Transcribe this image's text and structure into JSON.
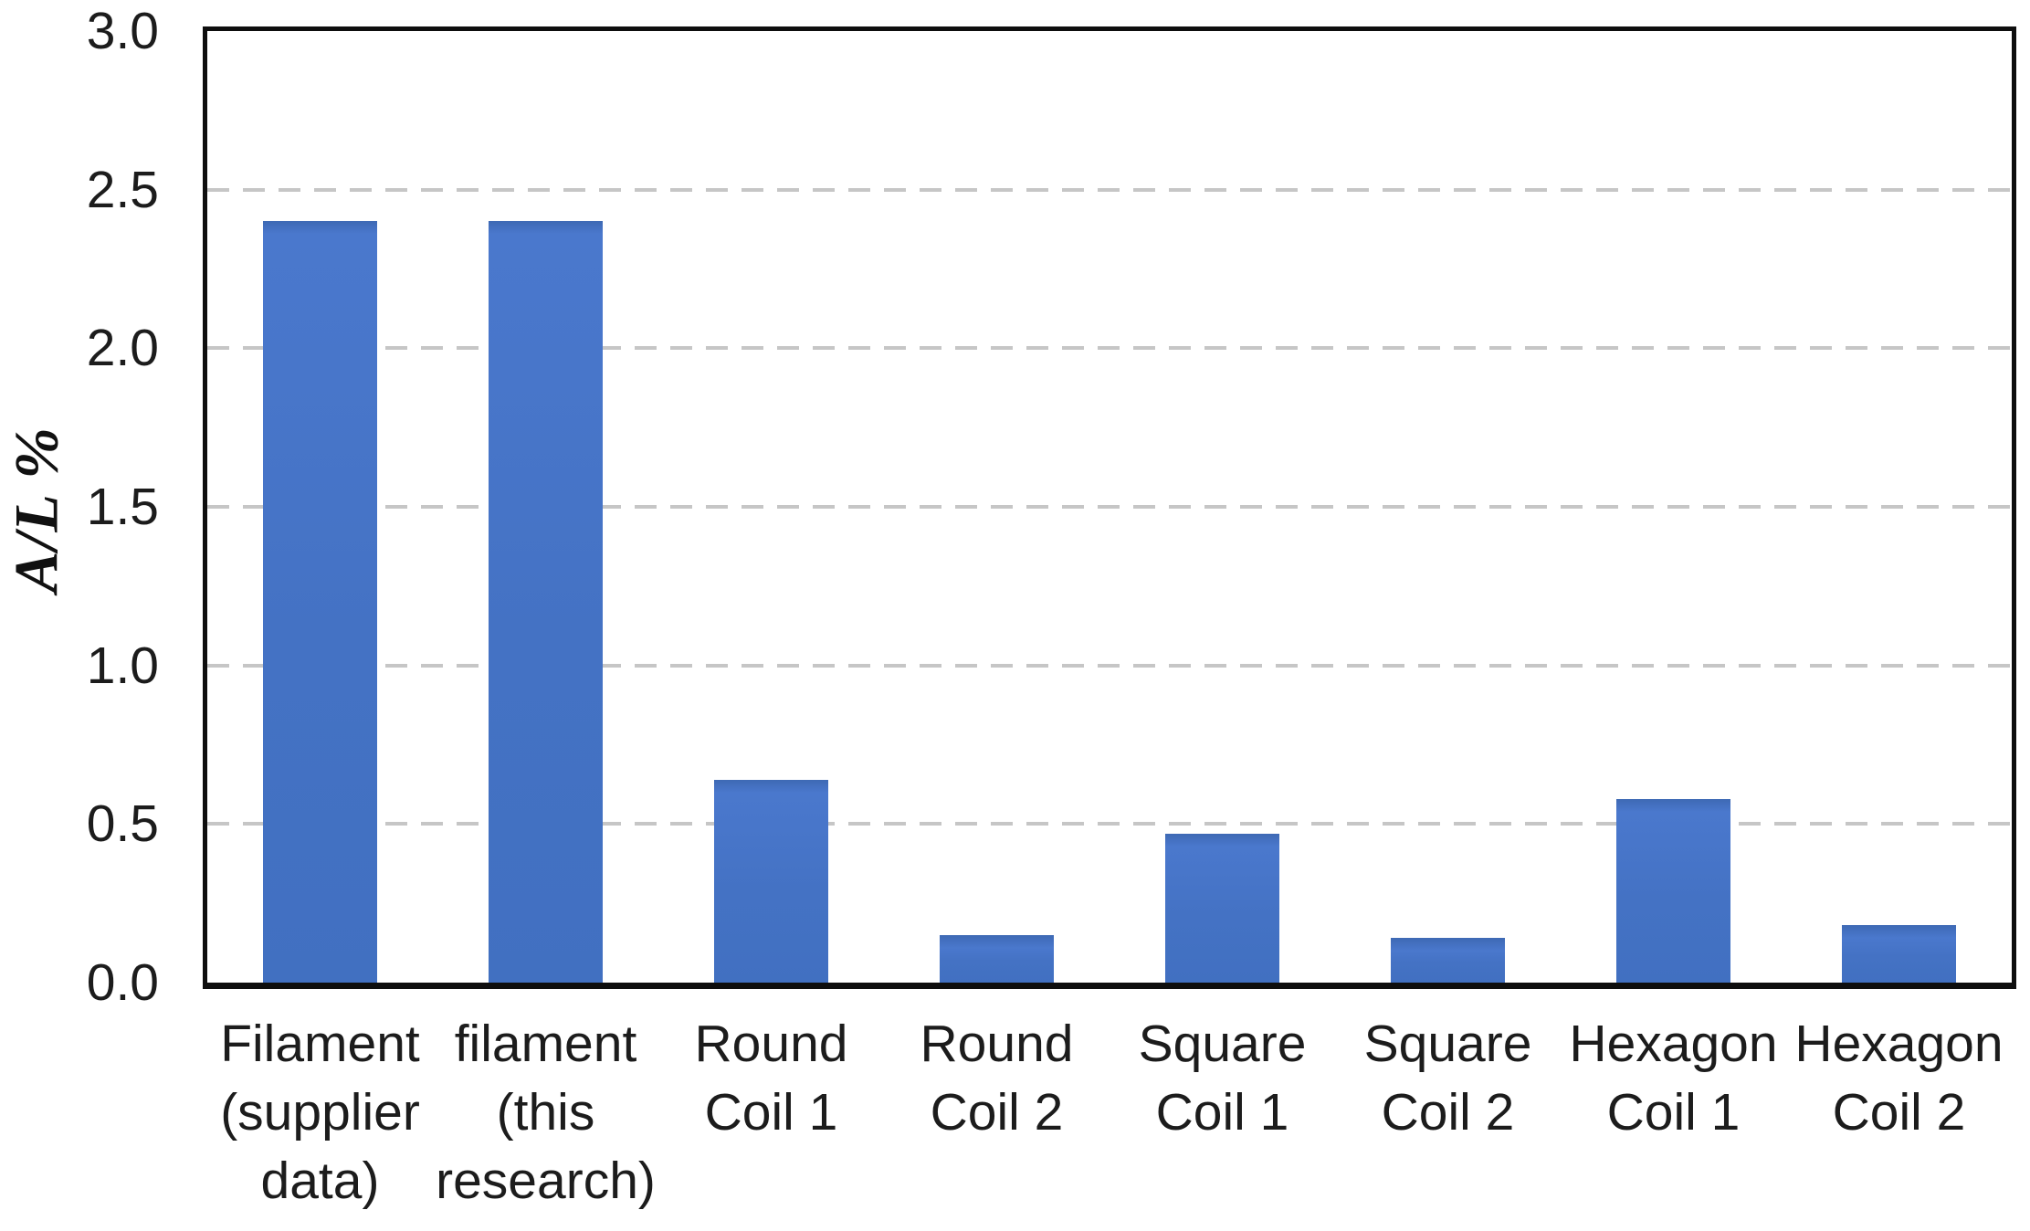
{
  "chart_data": {
    "type": "bar",
    "title": "",
    "ylabel": "A/L %",
    "xlabel": "",
    "ylim": [
      0,
      3.0
    ],
    "ytick_step": 0.5,
    "yticks": [
      "3.0",
      "2.5",
      "2.0",
      "1.5",
      "1.0",
      "0.5",
      "0.0"
    ],
    "gridlines_at": [
      0.5,
      1.0,
      1.5,
      2.0,
      2.5
    ],
    "grid_style": "dashed horizontal",
    "legend_position": "none",
    "categories": [
      "Filament (supplier data)",
      "filament (this research)",
      "Round Coil 1",
      "Round Coil 2",
      "Square Coil 1",
      "Square Coil 2",
      "Hexagon Coil 1",
      "Hexagon Coil 2"
    ],
    "category_label_lines": [
      [
        "Filament",
        "(supplier",
        "data)"
      ],
      [
        "filament",
        "(this",
        "research)"
      ],
      [
        "Round",
        "Coil 1"
      ],
      [
        "Round",
        "Coil 2"
      ],
      [
        "Square",
        "Coil 1"
      ],
      [
        "Square",
        "Coil 2"
      ],
      [
        "Hexagon",
        "Coil 1"
      ],
      [
        "Hexagon",
        "Coil 2"
      ]
    ],
    "values": [
      2.4,
      2.4,
      0.64,
      0.15,
      0.47,
      0.14,
      0.58,
      0.18
    ],
    "colors": {
      "bar_fill": "#4472C4",
      "gridline": "#c6c6c6",
      "frame": "#0e0e0e",
      "text": "#1c1c1c"
    }
  }
}
